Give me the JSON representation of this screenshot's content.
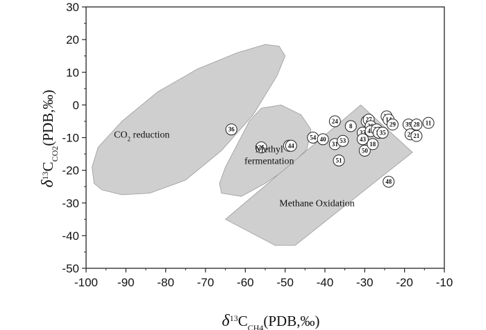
{
  "chart_data": {
    "type": "scatter",
    "title": "",
    "xlabel": {
      "prefix": "δ",
      "sup": "13",
      "main": "C",
      "sub": "CH4",
      "suffix": "(PDB,‰)"
    },
    "ylabel": {
      "prefix": "δ",
      "sup": "13",
      "main": "C",
      "sub": "CO2",
      "suffix": "(PDB,‰)"
    },
    "xlim": [
      -100,
      -10
    ],
    "ylim": [
      -50,
      30
    ],
    "xticks": [
      -100,
      -90,
      -80,
      -70,
      -60,
      -50,
      -40,
      -30,
      -20,
      -10
    ],
    "yticks": [
      -50,
      -40,
      -30,
      -20,
      -10,
      0,
      10,
      20,
      30
    ],
    "regions": [
      {
        "name": "CO2 reduction",
        "label_main": "CO",
        "label_sub": "2",
        "label_rest": " reduction",
        "label_at": [
          -86,
          -10
        ],
        "polygon": [
          [
            -96,
            -26
          ],
          [
            -91,
            -27.5
          ],
          [
            -84,
            -27
          ],
          [
            -75,
            -23
          ],
          [
            -66,
            -14
          ],
          [
            -58,
            -3
          ],
          [
            -52,
            9
          ],
          [
            -50,
            15
          ],
          [
            -51.5,
            18
          ],
          [
            -55,
            18.5
          ],
          [
            -62,
            16
          ],
          [
            -72,
            11
          ],
          [
            -82,
            4
          ],
          [
            -91,
            -5
          ],
          [
            -97,
            -13
          ],
          [
            -98.5,
            -19
          ],
          [
            -98,
            -24
          ]
        ]
      },
      {
        "name": "Methyl fermentation",
        "label_lines": [
          "Methyl",
          "fermentation"
        ],
        "label_at": [
          -54,
          -14.5
        ],
        "polygon": [
          [
            -66,
            -27
          ],
          [
            -61,
            -28
          ],
          [
            -55,
            -24
          ],
          [
            -49,
            -19
          ],
          [
            -44.5,
            -13.5
          ],
          [
            -43.5,
            -7.5
          ],
          [
            -46,
            -3
          ],
          [
            -51,
            0
          ],
          [
            -56,
            -1
          ],
          [
            -59,
            -5
          ],
          [
            -62,
            -12
          ],
          [
            -65,
            -19
          ],
          [
            -66.5,
            -24
          ]
        ]
      },
      {
        "name": "Methane Oxidation",
        "label_lines": [
          "Methane Oxidation"
        ],
        "label_at": [
          -42,
          -31
        ],
        "polygon": [
          [
            -65,
            -35
          ],
          [
            -31,
            0
          ],
          [
            -18,
            -14.5
          ],
          [
            -47.5,
            -43
          ],
          [
            -52.5,
            -43
          ]
        ]
      }
    ],
    "points": [
      {
        "label": "36",
        "x": -63.5,
        "y": -7.5
      },
      {
        "label": "26",
        "x": -56,
        "y": -13
      },
      {
        "label": "47",
        "x": -49,
        "y": -12.5
      },
      {
        "label": "44",
        "x": -48.5,
        "y": -12.5
      },
      {
        "label": "54",
        "x": -43,
        "y": -10
      },
      {
        "label": "40",
        "x": -40.5,
        "y": -10.5
      },
      {
        "label": "31",
        "x": -37.5,
        "y": -12
      },
      {
        "label": "53",
        "x": -35.5,
        "y": -11
      },
      {
        "label": "51",
        "x": -36.5,
        "y": -17
      },
      {
        "label": "24",
        "x": -37.5,
        "y": -5
      },
      {
        "label": "8",
        "x": -33.5,
        "y": -6.5
      },
      {
        "label": "33",
        "x": -30.5,
        "y": -8.5
      },
      {
        "label": "43",
        "x": -30.5,
        "y": -10.5
      },
      {
        "label": "50",
        "x": -30,
        "y": -14
      },
      {
        "label": "32",
        "x": -29.5,
        "y": -5
      },
      {
        "label": "27",
        "x": -29,
        "y": -4.5
      },
      {
        "label": "30",
        "x": -28.5,
        "y": -6.5
      },
      {
        "label": "41",
        "x": -28.5,
        "y": -8
      },
      {
        "label": "37",
        "x": -27,
        "y": -7.5
      },
      {
        "label": "15",
        "x": -26.5,
        "y": -8.5
      },
      {
        "label": "35",
        "x": -25.5,
        "y": -8.5
      },
      {
        "label": "18",
        "x": -28,
        "y": -12
      },
      {
        "label": "34",
        "x": -24.5,
        "y": -3.5
      },
      {
        "label": "14",
        "x": -24,
        "y": -4.5
      },
      {
        "label": "29",
        "x": -23,
        "y": -6
      },
      {
        "label": "39",
        "x": -19,
        "y": -6
      },
      {
        "label": "28",
        "x": -17,
        "y": -6
      },
      {
        "label": "20",
        "x": -18.5,
        "y": -9
      },
      {
        "label": "21",
        "x": -17,
        "y": -9.5
      },
      {
        "label": "11",
        "x": -14,
        "y": -5.5
      },
      {
        "label": "48",
        "x": -24,
        "y": -23.5
      }
    ],
    "grid": false,
    "legend": "none"
  }
}
